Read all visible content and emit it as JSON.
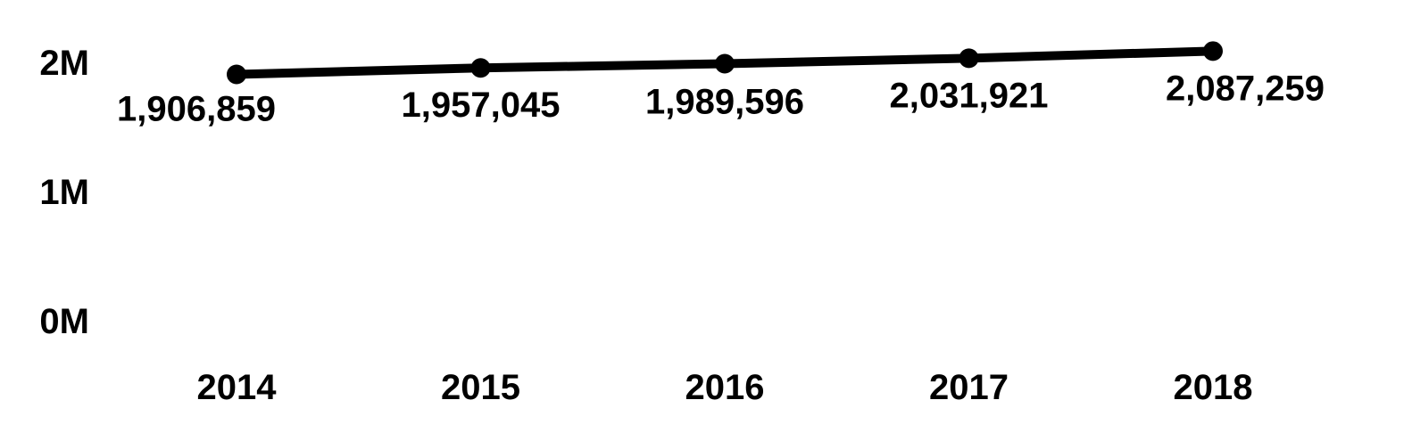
{
  "chart_data": {
    "type": "line",
    "title": "",
    "xlabel": "",
    "ylabel": "",
    "categories": [
      "2014",
      "2015",
      "2016",
      "2017",
      "2018"
    ],
    "values": [
      1906859,
      1957045,
      1989596,
      2031921,
      2087259
    ],
    "data_labels": [
      "1,906,859",
      "1,957,045",
      "1,989,596",
      "2,031,921",
      "2,087,259"
    ],
    "y_ticks": [
      {
        "value": 0,
        "label": "0M"
      },
      {
        "value": 1000000,
        "label": "1M"
      },
      {
        "value": 2000000,
        "label": "2M"
      }
    ],
    "ylim": [
      0,
      2200000
    ],
    "grid": false,
    "legend": "none",
    "colors": {
      "line": "#000000",
      "marker": "#000000",
      "text": "#000000"
    }
  }
}
